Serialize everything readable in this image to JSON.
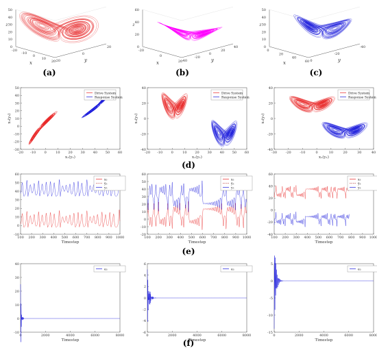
{
  "captions": {
    "a": "(a)",
    "b": "(b)",
    "c": "(c)",
    "d": "(d)",
    "e": "(e)",
    "f": "(f)"
  },
  "row_a": [
    {
      "id": "a",
      "color": "#e8292a",
      "zticks": [
        "0",
        "10",
        "20",
        "30",
        "40",
        "50"
      ],
      "xticks": [
        "-20",
        "-10",
        "0",
        "10",
        "20"
      ],
      "yticks": [
        "-20",
        "0",
        "20"
      ],
      "xlabel": "x",
      "ylabel": "y",
      "zlabel": "z"
    },
    {
      "id": "b",
      "color": "#ff00ff",
      "zticks": [
        "0",
        "20",
        "40",
        "60"
      ],
      "xticks": [
        "-20",
        "0",
        "20"
      ],
      "yticks": [
        "-40",
        "-20",
        "0",
        "20",
        "40"
      ],
      "xlabel": "x",
      "ylabel": "y",
      "zlabel": "z"
    },
    {
      "id": "c",
      "color": "#1c1cdc",
      "zticks": [
        "0",
        "10",
        "20",
        "30",
        "40",
        "50"
      ],
      "xticks": [
        "0",
        "20",
        "40",
        "60"
      ],
      "yticks": [
        "0",
        "-20",
        "-40"
      ],
      "xlabel": "x",
      "ylabel": "y",
      "zlabel": "z"
    }
  ],
  "row_d": [
    {
      "legend": [
        "Drive System",
        "Response System"
      ],
      "xticks": [
        "-20",
        "-10",
        "0",
        "10",
        "20",
        "30",
        "40",
        "50",
        "60"
      ],
      "yticks": [
        "-30",
        "-20",
        "-10",
        "0",
        "10",
        "20",
        "30",
        "40",
        "50"
      ],
      "xlabel": "x₁(y₁)",
      "ylabel": "x₃(y₃)",
      "xlim": [
        -20,
        60
      ],
      "ylim": [
        -30,
        50
      ]
    },
    {
      "legend": [
        "Drive System",
        "Response System"
      ],
      "xticks": [
        "-20",
        "-10",
        "0",
        "10",
        "20",
        "30",
        "40",
        "50",
        "60"
      ],
      "yticks": [
        "-40",
        "-20",
        "0",
        "20",
        "40"
      ],
      "xlabel": "x₁(y₁)",
      "ylabel": "x₃(y₃)",
      "xlim": [
        -20,
        60
      ],
      "ylim": [
        -40,
        50
      ]
    },
    {
      "legend": [
        "Drive System",
        "Response System"
      ],
      "xticks": [
        "-30",
        "-20",
        "-10",
        "0",
        "10",
        "20",
        "30",
        "40"
      ],
      "yticks": [
        "-40",
        "-20",
        "0",
        "20",
        "40"
      ],
      "xlabel": "x₁(y₁)",
      "ylabel": "x₃(y₃)",
      "xlim": [
        -30,
        40
      ],
      "ylim": [
        -40,
        50
      ]
    }
  ],
  "row_e": [
    {
      "legend": [
        "x₃",
        "ȳ₃",
        "y₃"
      ],
      "xticks": [
        "100",
        "200",
        "300",
        "400",
        "500",
        "600",
        "700",
        "800",
        "900",
        "1000"
      ],
      "yticks": [
        "-10",
        "0",
        "10",
        "20",
        "30",
        "40",
        "50",
        "60"
      ],
      "xlabel": "Timestep",
      "ylim": [
        -10,
        60
      ]
    },
    {
      "legend": [
        "x₃",
        "ȳ₃",
        "y₃"
      ],
      "xticks": [
        "100",
        "200",
        "300",
        "400",
        "500",
        "600",
        "700",
        "800",
        "900",
        "1000"
      ],
      "yticks": [
        "-20",
        "-10",
        "0",
        "10",
        "20",
        "30",
        "40",
        "50",
        "60"
      ],
      "xlabel": "Timestep",
      "ylim": [
        -20,
        60
      ]
    },
    {
      "legend": [
        "x₃",
        "ȳ₃",
        "y₃"
      ],
      "xticks": [
        "100",
        "200",
        "300",
        "400",
        "500",
        "600",
        "700",
        "800",
        "900",
        "1000"
      ],
      "yticks": [
        "-40",
        "-20",
        "0",
        "20",
        "40",
        "60"
      ],
      "xlabel": "Timestep",
      "ylim": [
        -40,
        60
      ]
    }
  ],
  "row_f": [
    {
      "legend": [
        "e₃"
      ],
      "xticks": [
        "0",
        "2000",
        "4000",
        "6000",
        "8000"
      ],
      "yticks": [
        "-10",
        "0",
        "10",
        "20",
        "30",
        "40"
      ],
      "xlabel": "Timestep",
      "ylim": [
        -10,
        40
      ]
    },
    {
      "legend": [
        "e₃"
      ],
      "xticks": [
        "0",
        "2000",
        "4000",
        "6000",
        "8000"
      ],
      "yticks": [
        "-6",
        "-4",
        "-2",
        "0",
        "2",
        "4",
        "6"
      ],
      "xlabel": "Timestep",
      "ylim": [
        -6,
        6
      ]
    },
    {
      "legend": [
        "e₃"
      ],
      "xticks": [
        "0",
        "2000",
        "4000",
        "6000",
        "8000"
      ],
      "yticks": [
        "-15",
        "-10",
        "-5",
        "0",
        "5"
      ],
      "xlabel": "Timestep",
      "ylim": [
        -15,
        5
      ]
    }
  ],
  "chart_data": [
    {
      "panel": "a",
      "type": "line",
      "chart": "3d phase portrait",
      "series": [
        {
          "values": []
        }
      ],
      "xlim": [
        -20,
        20
      ],
      "ylim": [
        -20,
        20
      ],
      "zlim": [
        0,
        50
      ]
    },
    {
      "panel": "b",
      "type": "line",
      "chart": "3d phase portrait",
      "series": [
        {
          "values": []
        }
      ],
      "xlim": [
        -20,
        20
      ],
      "ylim": [
        -40,
        40
      ],
      "zlim": [
        0,
        60
      ]
    },
    {
      "panel": "c",
      "type": "line",
      "chart": "3d phase portrait",
      "series": [
        {
          "values": []
        }
      ],
      "xlim": [
        0,
        60
      ],
      "ylim": [
        -40,
        0
      ],
      "zlim": [
        0,
        50
      ]
    },
    {
      "panel": "d1",
      "type": "line",
      "series": [
        {
          "name": "Drive System",
          "center_x": [
            -10,
            10
          ]
        },
        {
          "name": "Response System",
          "center_x": [
            35,
            50
          ]
        }
      ],
      "xlim": [
        -20,
        60
      ],
      "ylim": [
        -30,
        50
      ]
    },
    {
      "panel": "d2",
      "type": "line",
      "series": [
        {
          "name": "Drive System"
        },
        {
          "name": "Response System"
        }
      ],
      "xlim": [
        -20,
        60
      ],
      "ylim": [
        -40,
        50
      ]
    },
    {
      "panel": "d3",
      "type": "line",
      "series": [
        {
          "name": "Drive System"
        },
        {
          "name": "Response System"
        }
      ],
      "xlim": [
        -30,
        40
      ],
      "ylim": [
        -40,
        50
      ]
    },
    {
      "panel": "e1",
      "type": "line",
      "series": [
        {
          "name": "x₃",
          "level": 5
        },
        {
          "name": "y₃",
          "level": 40
        }
      ],
      "xlim": [
        0,
        1000
      ],
      "ylim": [
        -10,
        60
      ]
    },
    {
      "panel": "e2",
      "type": "line",
      "series": [
        {
          "name": "x₃",
          "level": 5
        },
        {
          "name": "y₃",
          "level": 30
        }
      ],
      "xlim": [
        0,
        1000
      ],
      "ylim": [
        -20,
        60
      ]
    },
    {
      "panel": "e3",
      "type": "line",
      "series": [
        {
          "name": "x₃",
          "level": 30
        },
        {
          "name": "y₃",
          "level": -15
        }
      ],
      "xlim": [
        0,
        1000
      ],
      "ylim": [
        -40,
        60
      ]
    },
    {
      "panel": "f1",
      "type": "line",
      "series": [
        {
          "name": "e₃",
          "initial": 25,
          "final": 0
        }
      ],
      "xlim": [
        0,
        8000
      ],
      "ylim": [
        -10,
        40
      ]
    },
    {
      "panel": "f2",
      "type": "line",
      "series": [
        {
          "name": "e₃",
          "initial": 5,
          "final": 0
        }
      ],
      "xlim": [
        0,
        8000
      ],
      "ylim": [
        -6,
        6
      ]
    },
    {
      "panel": "f3",
      "type": "line",
      "series": [
        {
          "name": "e₃",
          "initial": -14,
          "final": 0
        }
      ],
      "xlim": [
        0,
        8000
      ],
      "ylim": [
        -15,
        5
      ]
    }
  ]
}
